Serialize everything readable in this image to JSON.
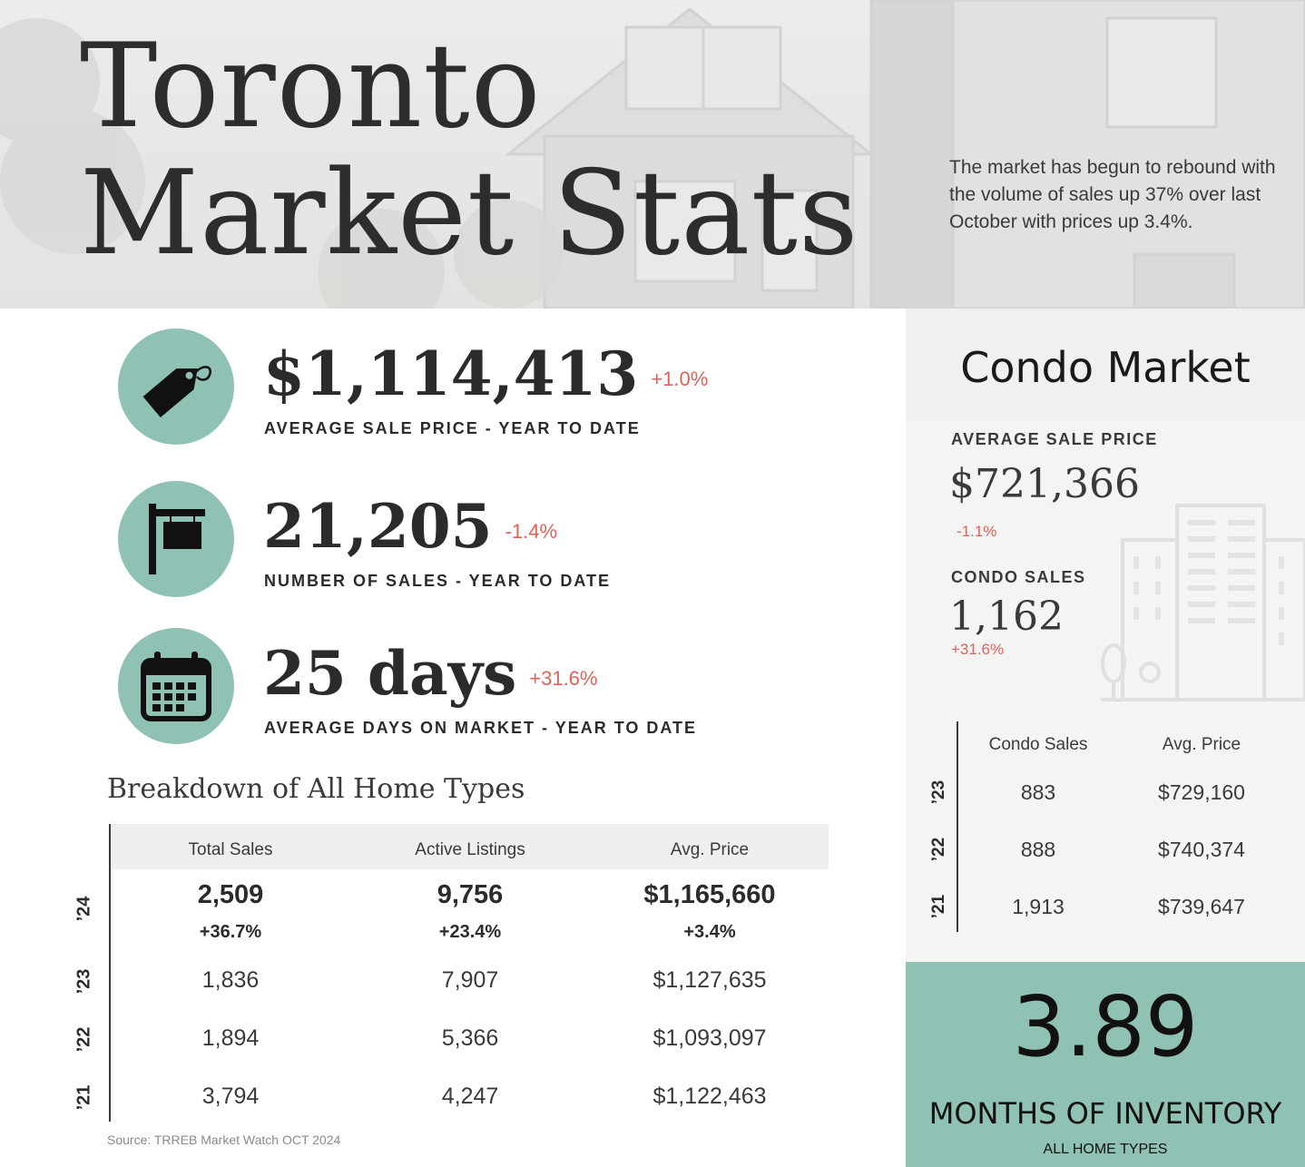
{
  "header": {
    "title_line1": "Toronto",
    "title_line2": "Market Stats",
    "intro": "The market has begun to rebound with the volume of sales up 37% over last October with prices up 3.4%."
  },
  "stats": [
    {
      "icon": "price-tag-icon",
      "value": "$1,114,413",
      "change": "+1.0%",
      "label": "AVERAGE SALE PRICE - YEAR TO DATE"
    },
    {
      "icon": "for-sale-sign-icon",
      "value": "21,205",
      "change": "-1.4%",
      "label": "NUMBER OF SALES - YEAR TO DATE"
    },
    {
      "icon": "calendar-icon",
      "value": "25 days",
      "change": "+31.6%",
      "label": "AVERAGE DAYS ON MARKET - YEAR TO DATE"
    }
  ],
  "breakdown": {
    "title": "Breakdown of All Home Types",
    "headers": [
      "Total Sales",
      "Active Listings",
      "Avg. Price"
    ],
    "current": {
      "year": "’24",
      "values": [
        "2,509",
        "9,756",
        "$1,165,660"
      ],
      "changes": [
        "+36.7%",
        "+23.4%",
        "+3.4%"
      ]
    },
    "rows": [
      {
        "year": "’23",
        "values": [
          "1,836",
          "7,907",
          "$1,127,635"
        ]
      },
      {
        "year": "’22",
        "values": [
          "1,894",
          "5,366",
          "$1,093,097"
        ]
      },
      {
        "year": "’21",
        "values": [
          "3,794",
          "4,247",
          "$1,122,463"
        ]
      }
    ],
    "source": "Source: TRREB Market Watch OCT 2024"
  },
  "condo": {
    "title": "Condo Market",
    "avg_price_label": "AVERAGE SALE PRICE",
    "avg_price": "$721,366",
    "avg_price_change": "-1.1%",
    "sales_label": "CONDO SALES",
    "sales": "1,162",
    "sales_change": "+31.6%",
    "headers": [
      "Condo Sales",
      "Avg. Price"
    ],
    "rows": [
      {
        "year": "’23",
        "values": [
          "883",
          "$729,160"
        ]
      },
      {
        "year": "’22",
        "values": [
          "888",
          "$740,374"
        ]
      },
      {
        "year": "’21",
        "values": [
          "1,913",
          "$739,647"
        ]
      }
    ]
  },
  "inventory": {
    "value": "3.89",
    "label": "MONTHS OF INVENTORY",
    "sublabel": "ALL HOME TYPES"
  },
  "colors": {
    "accent_teal": "#8fc1b5",
    "change_red": "#e0625a",
    "text_dark": "#2b2b2b"
  }
}
